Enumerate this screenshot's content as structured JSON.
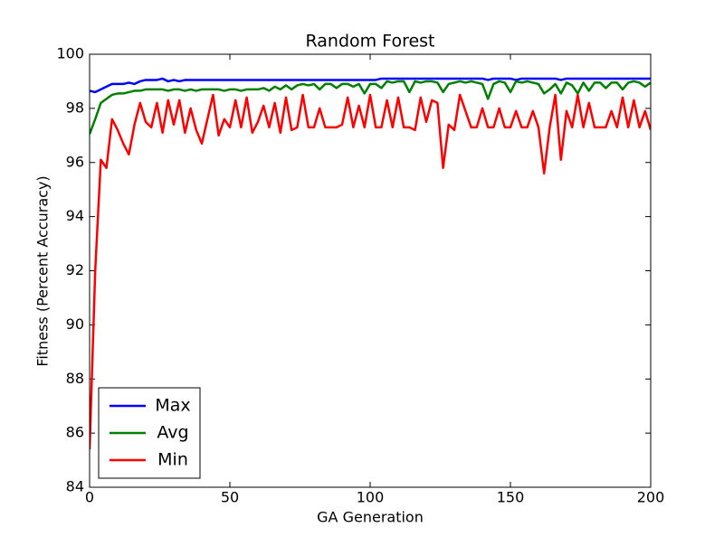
{
  "chart_data": {
    "type": "line",
    "title": "Random Forest",
    "x_label": "GA Generation",
    "y_label": "Fitness (Percent Accuracy)",
    "x": [
      0,
      2,
      4,
      6,
      8,
      10,
      12,
      14,
      16,
      18,
      20,
      22,
      24,
      26,
      28,
      30,
      32,
      34,
      36,
      38,
      40,
      42,
      44,
      46,
      48,
      50,
      52,
      54,
      56,
      58,
      60,
      62,
      64,
      66,
      68,
      70,
      72,
      74,
      76,
      78,
      80,
      82,
      84,
      86,
      88,
      90,
      92,
      94,
      96,
      98,
      100,
      102,
      104,
      106,
      108,
      110,
      112,
      114,
      116,
      118,
      120,
      122,
      124,
      126,
      128,
      130,
      132,
      134,
      136,
      138,
      140,
      142,
      144,
      146,
      148,
      150,
      152,
      154,
      156,
      158,
      160,
      162,
      164,
      166,
      168,
      170,
      172,
      174,
      176,
      178,
      180,
      182,
      184,
      186,
      188,
      190,
      192,
      194,
      196,
      198,
      200
    ],
    "series": [
      {
        "name": "Max",
        "color": "#0000ff",
        "values": [
          98.65,
          98.6,
          98.7,
          98.8,
          98.9,
          98.9,
          98.9,
          98.95,
          98.9,
          99.0,
          99.05,
          99.05,
          99.05,
          99.1,
          99.0,
          99.05,
          99.0,
          99.05,
          99.05,
          99.05,
          99.05,
          99.05,
          99.05,
          99.05,
          99.05,
          99.05,
          99.05,
          99.05,
          99.05,
          99.05,
          99.05,
          99.05,
          99.05,
          99.05,
          99.05,
          99.05,
          99.05,
          99.05,
          99.05,
          99.05,
          99.05,
          99.05,
          99.05,
          99.05,
          99.05,
          99.05,
          99.05,
          99.05,
          99.05,
          99.05,
          99.05,
          99.05,
          99.1,
          99.1,
          99.1,
          99.1,
          99.1,
          99.1,
          99.1,
          99.1,
          99.1,
          99.1,
          99.1,
          99.1,
          99.1,
          99.1,
          99.1,
          99.1,
          99.1,
          99.1,
          99.1,
          99.05,
          99.1,
          99.1,
          99.1,
          99.1,
          99.05,
          99.1,
          99.1,
          99.1,
          99.1,
          99.1,
          99.1,
          99.1,
          99.05,
          99.1,
          99.1,
          99.1,
          99.1,
          99.1,
          99.1,
          99.1,
          99.1,
          99.1,
          99.1,
          99.1,
          99.1,
          99.1,
          99.1,
          99.1,
          99.1
        ]
      },
      {
        "name": "Avg",
        "color": "#008000",
        "values": [
          97.05,
          97.6,
          98.2,
          98.35,
          98.5,
          98.55,
          98.55,
          98.6,
          98.65,
          98.65,
          98.7,
          98.7,
          98.7,
          98.7,
          98.65,
          98.7,
          98.7,
          98.65,
          98.7,
          98.65,
          98.7,
          98.7,
          98.7,
          98.7,
          98.65,
          98.7,
          98.7,
          98.65,
          98.7,
          98.7,
          98.7,
          98.75,
          98.65,
          98.8,
          98.7,
          98.85,
          98.7,
          98.85,
          98.9,
          98.85,
          98.9,
          98.7,
          98.9,
          98.9,
          98.75,
          98.9,
          98.9,
          98.8,
          98.9,
          98.55,
          98.9,
          98.9,
          98.75,
          99.0,
          98.95,
          99.0,
          99.0,
          98.6,
          99.0,
          98.95,
          99.0,
          99.0,
          98.95,
          98.6,
          98.9,
          98.95,
          99.0,
          98.95,
          99.0,
          98.95,
          98.9,
          98.35,
          98.9,
          99.0,
          98.95,
          98.6,
          99.0,
          98.95,
          99.0,
          98.95,
          98.9,
          98.55,
          98.7,
          98.9,
          98.55,
          98.95,
          98.85,
          98.55,
          98.95,
          98.65,
          98.95,
          98.95,
          98.75,
          98.95,
          98.95,
          98.7,
          98.95,
          99.0,
          98.95,
          98.8,
          98.95
        ]
      },
      {
        "name": "Min",
        "color": "#ff0000",
        "values": [
          85.4,
          92.0,
          96.1,
          95.8,
          97.6,
          97.2,
          96.7,
          96.3,
          97.4,
          98.2,
          97.5,
          97.3,
          98.2,
          97.1,
          98.3,
          97.4,
          98.3,
          97.1,
          98.0,
          97.2,
          96.7,
          97.6,
          98.5,
          97.0,
          97.6,
          97.3,
          98.3,
          97.3,
          98.4,
          97.1,
          97.5,
          98.1,
          97.3,
          98.2,
          97.1,
          98.4,
          97.2,
          97.3,
          98.5,
          97.3,
          97.3,
          98.0,
          97.3,
          97.3,
          97.3,
          97.4,
          98.4,
          97.3,
          98.1,
          97.3,
          98.5,
          97.3,
          97.3,
          98.3,
          97.3,
          98.4,
          97.3,
          97.3,
          97.2,
          98.4,
          97.5,
          98.3,
          98.2,
          95.8,
          97.4,
          97.2,
          98.5,
          97.9,
          97.3,
          97.3,
          98.0,
          97.3,
          97.3,
          98.0,
          97.3,
          97.3,
          97.9,
          97.3,
          97.3,
          97.9,
          97.3,
          95.6,
          97.3,
          98.5,
          96.1,
          97.9,
          97.3,
          98.5,
          97.3,
          98.2,
          97.3,
          97.3,
          97.3,
          97.9,
          97.3,
          98.4,
          97.3,
          98.3,
          97.3,
          97.9,
          97.2
        ]
      }
    ],
    "xlim": [
      0,
      200
    ],
    "xticks": [
      0,
      50,
      100,
      150,
      200
    ],
    "ylim": [
      84,
      100
    ],
    "yticks": [
      84,
      86,
      88,
      90,
      92,
      94,
      96,
      98,
      100
    ],
    "grid": false,
    "legend": "lower left"
  }
}
